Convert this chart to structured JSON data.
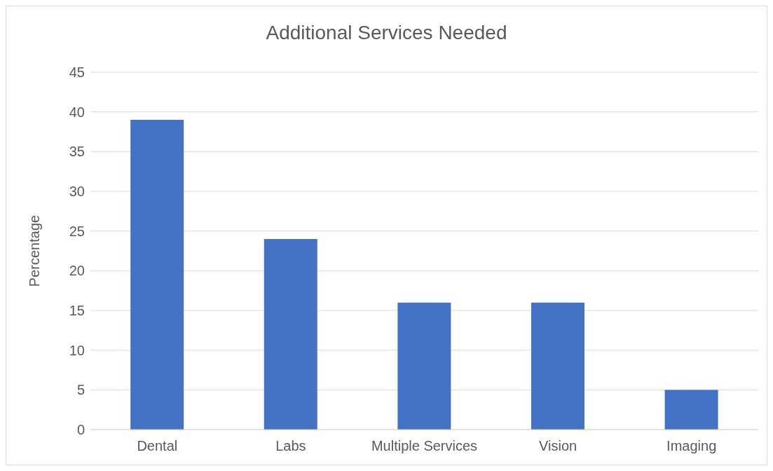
{
  "chart_data": {
    "type": "bar",
    "title": "Additional Services Needed",
    "ylabel": "Percentage",
    "categories": [
      "Dental",
      "Labs",
      "Multiple Services",
      "Vision",
      "Imaging"
    ],
    "values": [
      39,
      24,
      16,
      16,
      5
    ],
    "color": "#4472c4",
    "ylim": [
      0,
      45
    ],
    "yticks": [
      0,
      5,
      10,
      15,
      20,
      25,
      30,
      35,
      40,
      45
    ],
    "grid": "y"
  }
}
